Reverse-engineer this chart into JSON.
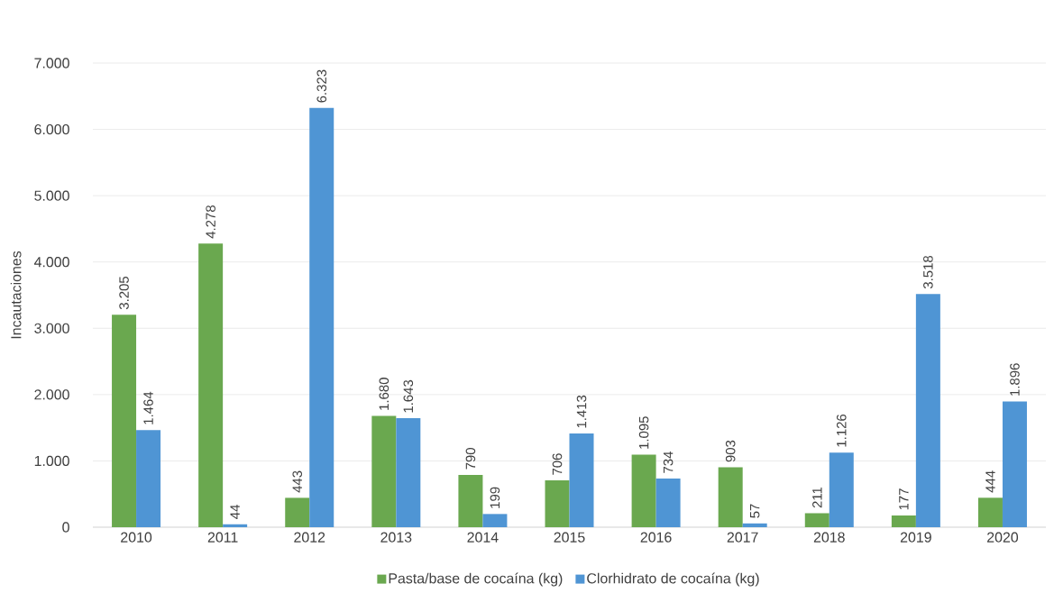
{
  "chart_data": {
    "type": "bar",
    "ylabel": "Incautaciones",
    "categories": [
      "2010",
      "2011",
      "2012",
      "2013",
      "2014",
      "2015",
      "2016",
      "2017",
      "2018",
      "2019",
      "2020"
    ],
    "series": [
      {
        "name": "Pasta/base de cocaína (kg)",
        "color": "#6aa84f",
        "values": [
          3205,
          4278,
          443,
          1680,
          790,
          706,
          1095,
          903,
          211,
          177,
          444
        ],
        "value_labels": [
          "3.205",
          "4.278",
          "443",
          "1.680",
          "790",
          "706",
          "1.095",
          "903",
          "211",
          "177",
          "444"
        ]
      },
      {
        "name": "Clorhidrato de cocaína (kg)",
        "color": "#4f95d4",
        "values": [
          1464,
          44,
          6323,
          1643,
          199,
          1413,
          734,
          57,
          1126,
          3518,
          1896
        ],
        "value_labels": [
          "1.464",
          "44",
          "6.323",
          "1.643",
          "199",
          "1.413",
          "734",
          "57",
          "1.126",
          "3.518",
          "1.896"
        ]
      }
    ],
    "ylim": [
      0,
      7000
    ],
    "yticks": [
      0,
      {
        "value": 1000,
        "label": "1.000"
      },
      {
        "value": 2000,
        "label": "2.000"
      },
      {
        "value": 3000,
        "label": "3.000"
      },
      {
        "value": 4000,
        "label": "4.000"
      },
      {
        "value": 5000,
        "label": "5.000"
      },
      {
        "value": 6000,
        "label": "6.000"
      },
      {
        "value": 7000,
        "label": "7.000"
      }
    ],
    "grid": "y",
    "legend": "bottom"
  }
}
